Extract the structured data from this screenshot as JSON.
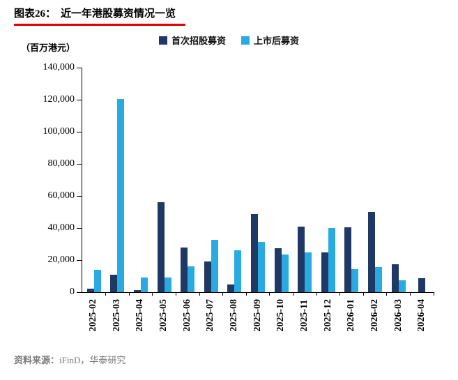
{
  "header": {
    "label": "图表26：",
    "title": "近一年港股募资情况一览",
    "underline_color": "#e00000"
  },
  "chart_data": {
    "type": "bar",
    "title": "近一年港股募资情况一览",
    "unit_label": "（百万港元）",
    "categories": [
      "2025-02",
      "2025-03",
      "2025-04",
      "2025-05",
      "2025-06",
      "2025-07",
      "2025-08",
      "2025-09",
      "2025-10",
      "2025-11",
      "2025-12",
      "2026-01",
      "2026-02",
      "2026-03",
      "2026-04"
    ],
    "series": [
      {
        "name": "首次招股募资",
        "color": "#1f3864",
        "values": [
          2000,
          11000,
          1500,
          56000,
          28000,
          19000,
          5000,
          48500,
          27500,
          41000,
          25000,
          40500,
          50000,
          17500,
          8500
        ]
      },
      {
        "name": "上市后募资",
        "color": "#29abe2",
        "values": [
          14000,
          120500,
          9000,
          9000,
          16000,
          32500,
          26000,
          31500,
          23500,
          25000,
          40000,
          14500,
          15500,
          7500,
          0
        ]
      }
    ],
    "ylim": [
      0,
      140000
    ],
    "y_tick_step": 20000,
    "y_ticks": [
      "0",
      "20,000",
      "40,000",
      "60,000",
      "80,000",
      "100,000",
      "120,000",
      "140,000"
    ],
    "grid": false,
    "legend_position": "top"
  },
  "footer": {
    "source_label": "资料来源：",
    "source_text": "iFinD，华泰研究"
  }
}
